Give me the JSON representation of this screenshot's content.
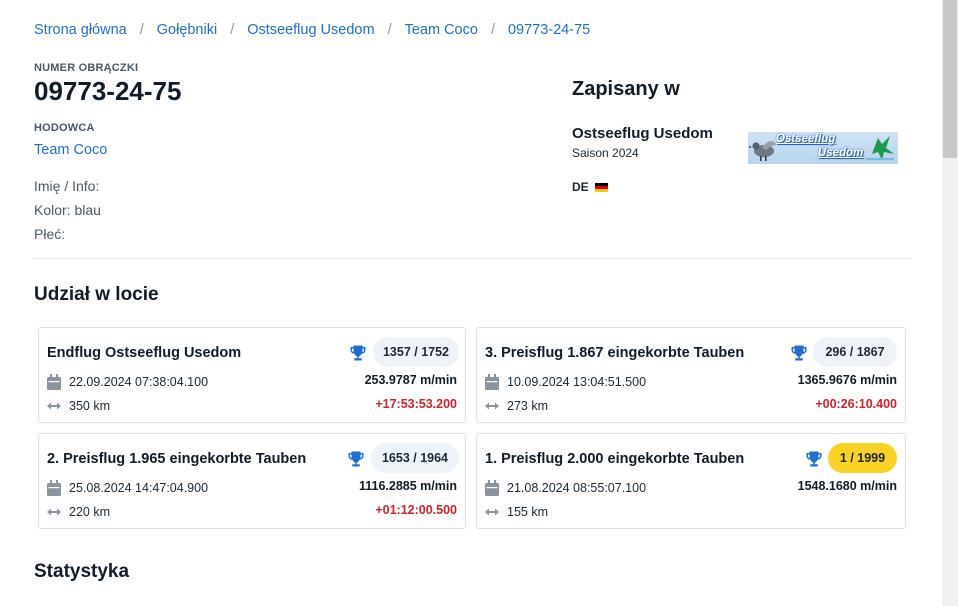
{
  "breadcrumb": [
    "Strona główna",
    "Gołębniki",
    "Ostseeflug Usedom",
    "Team Coco",
    "09773-24-75"
  ],
  "ring": {
    "label": "NUMER OBRĄCZKI",
    "number": "09773-24-75"
  },
  "breeder": {
    "label": "HODOWCA",
    "name": "Team Coco"
  },
  "info": {
    "name": "Imię / Info:",
    "color": "Kolor: blau",
    "sex": "Płeć:"
  },
  "registered": {
    "title": "Zapisany w",
    "club_name": "Ostseeflug Usedom",
    "season": "Saison 2024",
    "country": "DE",
    "logo_line1": "Ostseeflug",
    "logo_line2": "Usedom"
  },
  "flights_title": "Udział w locie",
  "flights": [
    {
      "title": "Endflug Ostseeflug Usedom",
      "rank": "1357 / 1752",
      "datetime": "22.09.2024 07:38:04.100",
      "speed": "253.9787 m/min",
      "distance": "350 km",
      "delay": "+17:53:53.200",
      "top": false
    },
    {
      "title": "3. Preisflug 1.867 eingekorbte Tauben",
      "rank": "296 / 1867",
      "datetime": "10.09.2024 13:04:51.500",
      "speed": "1365.9676 m/min",
      "distance": "273 km",
      "delay": "+00:26:10.400",
      "top": false
    },
    {
      "title": "2. Preisflug 1.965 eingekorbte Tauben",
      "rank": "1653 / 1964",
      "datetime": "25.08.2024 14:47:04.900",
      "speed": "1116.2885 m/min",
      "distance": "220 km",
      "delay": "+01:12:00.500",
      "top": false
    },
    {
      "title": "1. Preisflug 2.000 eingekorbte Tauben",
      "rank": "1 / 1999",
      "datetime": "21.08.2024 08:55:07.100",
      "speed": "1548.1680 m/min",
      "distance": "155 km",
      "delay": "",
      "top": true
    }
  ],
  "stats_title": "Statystyka",
  "colors": {
    "link": "#1f6fd1",
    "trophy": "#1f6fd1",
    "delay": "#d41f2c",
    "gold_badge": "#f9d223",
    "badge": "#eef3fa"
  },
  "icons": {
    "trophy": "trophy-icon",
    "calendar": "calendar-icon",
    "distance": "distance-arrows-icon",
    "flag": "germany-flag-icon"
  }
}
